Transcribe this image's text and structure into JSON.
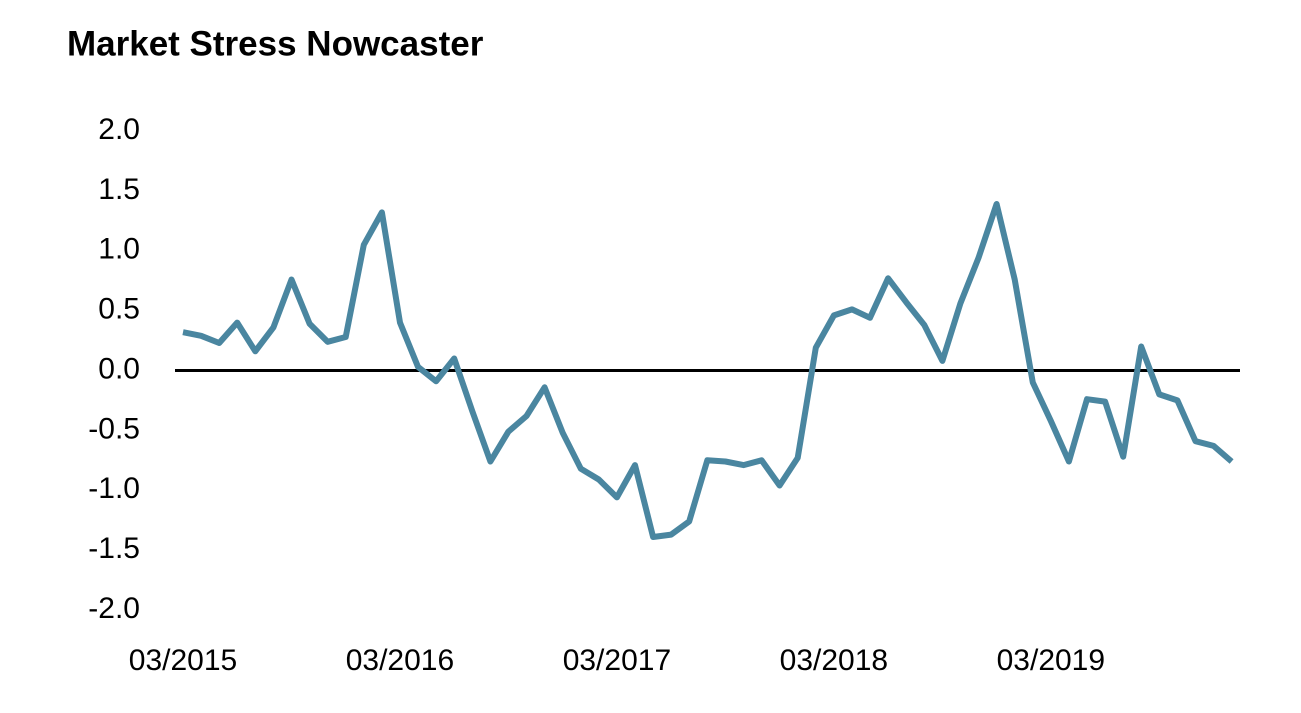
{
  "chart_data": {
    "type": "line",
    "title": "Market Stress Nowcaster",
    "categories": [
      "03/2015",
      null,
      null,
      null,
      null,
      null,
      null,
      null,
      null,
      null,
      null,
      null,
      "03/2016",
      null,
      null,
      null,
      null,
      null,
      null,
      null,
      null,
      null,
      null,
      null,
      "03/2017",
      null,
      null,
      null,
      null,
      null,
      null,
      null,
      null,
      null,
      null,
      null,
      "03/2018",
      null,
      null,
      null,
      null,
      null,
      null,
      null,
      null,
      null,
      null,
      null,
      "03/2019",
      null,
      null,
      null,
      null,
      null,
      null,
      null,
      null,
      null,
      null
    ],
    "series": [
      {
        "name": "Market Stress Nowcaster",
        "color": "#4a86a0",
        "values": [
          0.32,
          0.29,
          0.23,
          0.4,
          0.16,
          0.36,
          0.76,
          0.39,
          0.24,
          0.28,
          1.05,
          1.32,
          0.4,
          0.03,
          -0.09,
          0.1,
          -0.34,
          -0.76,
          -0.51,
          -0.38,
          -0.14,
          -0.52,
          -0.82,
          -0.91,
          -1.06,
          -0.79,
          -1.39,
          -1.37,
          -1.26,
          -0.75,
          -0.76,
          -0.79,
          -0.75,
          -0.96,
          -0.73,
          0.19,
          0.46,
          0.51,
          0.44,
          0.77,
          0.57,
          0.38,
          0.08,
          0.56,
          0.94,
          1.39,
          0.76,
          -0.1,
          -0.42,
          -0.76,
          -0.24,
          -0.26,
          -0.72,
          0.2,
          -0.2,
          -0.25,
          -0.59,
          -0.63,
          -0.76
        ]
      }
    ],
    "ylim": [
      -2,
      2
    ],
    "yticks": [
      {
        "value": -2,
        "label": "-2.0"
      },
      {
        "value": -1.5,
        "label": "-1.5"
      },
      {
        "value": -1,
        "label": "-1.0"
      },
      {
        "value": -0.5,
        "label": "-0.5"
      },
      {
        "value": 0,
        "label": "0.0"
      },
      {
        "value": 0.5,
        "label": "0.5"
      },
      {
        "value": 1,
        "label": "1.0"
      },
      {
        "value": 1.5,
        "label": "1.5"
      },
      {
        "value": 2,
        "label": "2.0"
      }
    ],
    "zero_line": true,
    "grid": false
  }
}
